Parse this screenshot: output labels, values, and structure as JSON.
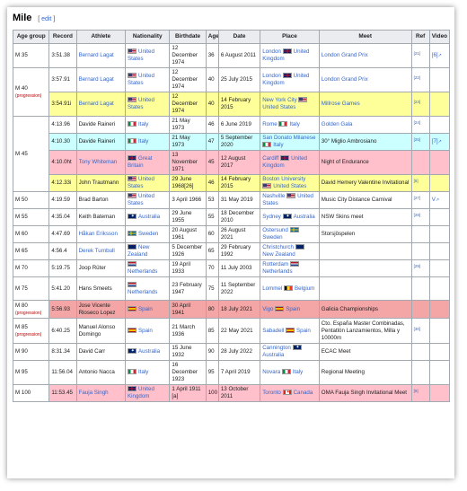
{
  "heading": {
    "title": "Mile",
    "edit_open": "[",
    "edit_label": "edit",
    "edit_close": "]"
  },
  "columns": [
    "Age group",
    "Record",
    "Athlete",
    "Nationality",
    "Birthdate",
    "Age",
    "Date",
    "Place",
    "Meet",
    "Ref",
    "Video"
  ],
  "rows": [
    {
      "group": "M 35",
      "group_note": "",
      "record": "3:51.38",
      "athlete": "Bernard Lagat",
      "athlete_link": true,
      "flag": "us",
      "nation": "United States",
      "birth": "12 December 1974",
      "age": "36",
      "date": "6 August 2011",
      "place": "London",
      "place_flag": "uk",
      "place_country": "United Kingdom",
      "meet": "London Grand Prix",
      "meet_link": true,
      "ref": "[21]",
      "video": "[6]",
      "bg": ""
    },
    {
      "group": "M 40",
      "group_note": "(progression)",
      "record": "3:57.91",
      "athlete": "Bernard Lagat",
      "athlete_link": true,
      "flag": "us",
      "nation": "United States",
      "birth": "12 December 1974",
      "age": "40",
      "date": "25 July 2015",
      "place": "London",
      "place_flag": "uk",
      "place_country": "United Kingdom",
      "meet": "London Grand Prix",
      "meet_link": true,
      "ref": "[22]",
      "video": "",
      "bg": ""
    },
    {
      "group": "",
      "group_note": "",
      "record": "3:54.91i",
      "athlete": "Bernard Lagat",
      "athlete_link": true,
      "flag": "us",
      "nation": "United States",
      "birth": "12 December 1974",
      "age": "40",
      "date": "14 February 2015",
      "place": "New York City",
      "place_flag": "us",
      "place_country": "United States",
      "meet": "Millrose Games",
      "meet_link": true,
      "ref": "[23]",
      "video": "",
      "bg": "y"
    },
    {
      "group": "M 45",
      "group_note": "",
      "record": "4:13.96",
      "athlete": "Davide Raineri",
      "athlete_link": false,
      "flag": "it",
      "nation": "Italy",
      "birth": "21 May 1973",
      "age": "46",
      "date": "6 June 2019",
      "place": "Rome",
      "place_flag": "it",
      "place_country": "Italy",
      "meet": "Golden Gala",
      "meet_link": true,
      "ref": "[24]",
      "video": "",
      "bg": ""
    },
    {
      "group": "",
      "group_note": "",
      "record": "4:10.30",
      "athlete": "Davide Raineri",
      "athlete_link": false,
      "flag": "it",
      "nation": "Italy",
      "birth": "21 May 1973",
      "age": "47",
      "date": "5 September 2020",
      "place": "San Donato Milanese",
      "place_flag": "it",
      "place_country": "Italy",
      "meet": "30° Miglio Ambrosiano",
      "meet_link": false,
      "ref": "[25]",
      "video": "[7]",
      "bg": "c"
    },
    {
      "group": "",
      "group_note": "",
      "record": "4:10.0ht",
      "athlete": "Tony Whiteman",
      "athlete_link": true,
      "flag": "uk",
      "nation": "Great Britain",
      "birth": "13 November 1971",
      "age": "45",
      "date": "12 August 2017",
      "place": "Cardiff",
      "place_flag": "uk",
      "place_country": "United Kingdom",
      "meet": "Night of Endurance",
      "meet_link": false,
      "ref": "",
      "video": "",
      "bg": "p"
    },
    {
      "group": "",
      "group_note": "",
      "record": "4:12.33i",
      "athlete": "John Trautmann",
      "athlete_link": false,
      "flag": "us",
      "nation": "United States",
      "birth": "29 June 1968[26]",
      "age": "46",
      "date": "14 February 2015",
      "place": "Boston University",
      "place_flag": "us",
      "place_country": "United States",
      "meet": "David Hemery Valentine Invitational",
      "meet_link": false,
      "ref": "[8]",
      "video": "",
      "bg": "y"
    },
    {
      "group": "M 50",
      "group_note": "",
      "record": "4:19.59",
      "athlete": "Brad Barton",
      "athlete_link": false,
      "flag": "us",
      "nation": "United States",
      "birth": "3 April 1966",
      "age": "53",
      "date": "31 May 2019",
      "place": "Nashville",
      "place_flag": "us",
      "place_country": "United States",
      "meet": "Music City Distance Carnival",
      "meet_link": false,
      "ref": "[27]",
      "video": "V",
      "bg": ""
    },
    {
      "group": "M 55",
      "group_note": "",
      "record": "4:35.04",
      "athlete": "Keith Bateman",
      "athlete_link": false,
      "flag": "au",
      "nation": "Australia",
      "birth": "29 June 1955",
      "age": "55",
      "date": "18 December 2010",
      "place": "Sydney",
      "place_flag": "au",
      "place_country": "Australia",
      "meet": "NSW Skins meet",
      "meet_link": false,
      "ref": "[28]",
      "video": "",
      "bg": ""
    },
    {
      "group": "M 60",
      "group_note": "",
      "record": "4:47.69",
      "athlete": "Håkan Eriksson",
      "athlete_link": true,
      "flag": "se",
      "nation": "Sweden",
      "birth": "20 August 1961",
      "age": "60",
      "date": "26 August 2021",
      "place": "Ostersund",
      "place_flag": "se",
      "place_country": "Sweden",
      "meet": "Storsjöspelen",
      "meet_link": false,
      "ref": "",
      "video": "",
      "bg": ""
    },
    {
      "group": "M 65",
      "group_note": "",
      "record": "4:56.4",
      "athlete": "Derek Turnbull",
      "athlete_link": true,
      "flag": "nz",
      "nation": "New Zealand",
      "birth": "5 December 1926",
      "age": "65",
      "date": "29 February 1992",
      "place": "Christchurch",
      "place_flag": "nz",
      "place_country": "New Zealand",
      "meet": "",
      "meet_link": false,
      "ref": "",
      "video": "",
      "bg": ""
    },
    {
      "group": "M 70",
      "group_note": "",
      "record": "5:19.75",
      "athlete": "Joop Rüter",
      "athlete_link": false,
      "flag": "nl",
      "nation": "Netherlands",
      "birth": "19 April 1933",
      "age": "70",
      "date": "11 July 2003",
      "place": "Rotterdam",
      "place_flag": "nl",
      "place_country": "Netherlands",
      "meet": "",
      "meet_link": false,
      "ref": "[29]",
      "video": "",
      "bg": ""
    },
    {
      "group": "M 75",
      "group_note": "",
      "record": "5:41.20",
      "athlete": "Hans Smeets",
      "athlete_link": false,
      "flag": "nl",
      "nation": "Netherlands",
      "birth": "23 February 1947",
      "age": "75",
      "date": "11 September 2022",
      "place": "Lommel",
      "place_flag": "be",
      "place_country": "Belgium",
      "meet": "",
      "meet_link": false,
      "ref": "",
      "video": "",
      "bg": ""
    },
    {
      "group": "M 80",
      "group_note": "(progression)",
      "record": "5:56.93",
      "athlete": "Jose Vicente Rioseco Lopez",
      "athlete_link": false,
      "flag": "es",
      "nation": "Spain",
      "birth": "30 April 1941",
      "age": "80",
      "date": "18 July 2021",
      "place": "Vigo",
      "place_flag": "es",
      "place_country": "Spain",
      "meet": "Galicia Championships",
      "meet_link": false,
      "ref": "",
      "video": "",
      "bg": "r"
    },
    {
      "group": "M 85",
      "group_note": "(progression)",
      "record": "6:40.25",
      "athlete": "Manuel Alonso Domingo",
      "athlete_link": false,
      "flag": "es",
      "nation": "Spain",
      "birth": "21 March 1936",
      "age": "85",
      "date": "22 May 2021",
      "place": "Sabadell",
      "place_flag": "es",
      "place_country": "Spain",
      "meet": "Cto. España Master Combinadas, Pentatlón Lanzamientos, Milla y 10000m",
      "meet_link": false,
      "ref": "[30]",
      "video": "",
      "bg": ""
    },
    {
      "group": "M 90",
      "group_note": "",
      "record": "8:31.34",
      "athlete": "David Carr",
      "athlete_link": false,
      "flag": "au",
      "nation": "Australia",
      "birth": "15 June 1932",
      "age": "90",
      "date": "28 July 2022",
      "place": "Cannington",
      "place_flag": "au",
      "place_country": "Australia",
      "meet": "ECAC Meet",
      "meet_link": false,
      "ref": "",
      "video": "",
      "bg": ""
    },
    {
      "group": "M 95",
      "group_note": "",
      "record": "11:56.04",
      "athlete": "Antonio Nacca",
      "athlete_link": false,
      "flag": "it",
      "nation": "Italy",
      "birth": "16 December 1923",
      "age": "95",
      "date": "7 April 2019",
      "place": "Novara",
      "place_flag": "it",
      "place_country": "Italy",
      "meet": "Regional Meeting",
      "meet_link": false,
      "ref": "",
      "video": "",
      "bg": ""
    },
    {
      "group": "M 100",
      "group_note": "",
      "record": "11:53.45",
      "athlete": "Fauja Singh",
      "athlete_link": true,
      "flag": "uk",
      "nation": "United Kingdom",
      "birth": "1 April 1911 [a]",
      "age": "100",
      "date": "13 October 2011",
      "place": "Toronto",
      "place_flag": "ca",
      "place_country": "Canada",
      "meet": "OMA Fauja Singh Invitational Meet",
      "meet_link": false,
      "ref": "[9]",
      "video": "",
      "bg": "p"
    }
  ]
}
